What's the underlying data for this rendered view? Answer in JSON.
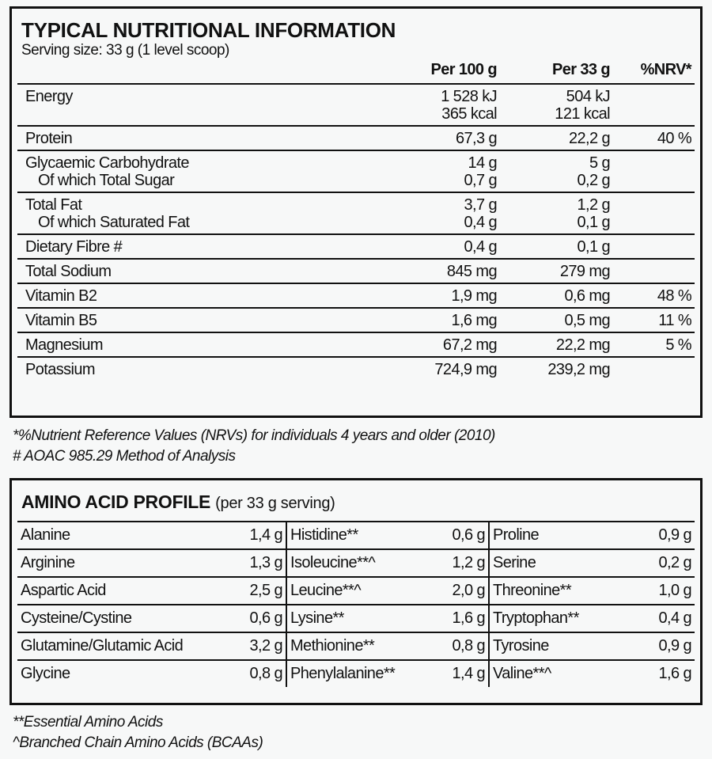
{
  "nutrition": {
    "title": "TYPICAL NUTRITIONAL INFORMATION",
    "serving": "Serving size: 33 g (1 level scoop)",
    "headers": [
      "Per 100 g",
      "Per 33 g",
      "%NRV*"
    ],
    "rows": [
      {
        "label": [
          "Energy"
        ],
        "per100": [
          "1 528 kJ",
          "365 kcal"
        ],
        "per33": [
          "504 kJ",
          "121 kcal"
        ],
        "nrv": ""
      },
      {
        "label": [
          "Protein"
        ],
        "per100": [
          "67,3 g"
        ],
        "per33": [
          "22,2 g"
        ],
        "nrv": "40 %"
      },
      {
        "label": [
          "Glycaemic Carbohydrate",
          "Of which Total Sugar"
        ],
        "per100": [
          "14 g",
          "0,7 g"
        ],
        "per33": [
          "5 g",
          "0,2 g"
        ],
        "nrv": ""
      },
      {
        "label": [
          "Total Fat",
          "Of which Saturated Fat"
        ],
        "per100": [
          "3,7 g",
          "0,4 g"
        ],
        "per33": [
          "1,2 g",
          "0,1 g"
        ],
        "nrv": ""
      },
      {
        "label": [
          "Dietary Fibre #"
        ],
        "per100": [
          "0,4 g"
        ],
        "per33": [
          "0,1 g"
        ],
        "nrv": ""
      },
      {
        "label": [
          "Total Sodium"
        ],
        "per100": [
          "845 mg"
        ],
        "per33": [
          "279 mg"
        ],
        "nrv": ""
      },
      {
        "label": [
          "Vitamin B2"
        ],
        "per100": [
          "1,9 mg"
        ],
        "per33": [
          "0,6 mg"
        ],
        "nrv": "48 %"
      },
      {
        "label": [
          "Vitamin B5"
        ],
        "per100": [
          "1,6 mg"
        ],
        "per33": [
          "0,5 mg"
        ],
        "nrv": "11 %"
      },
      {
        "label": [
          "Magnesium"
        ],
        "per100": [
          "67,2 mg"
        ],
        "per33": [
          "22,2 mg"
        ],
        "nrv": "5 %"
      },
      {
        "label": [
          "Potassium"
        ],
        "per100": [
          "724,9 mg"
        ],
        "per33": [
          "239,2 mg"
        ],
        "nrv": ""
      }
    ],
    "footnotes": [
      "*%Nutrient Reference Values (NRVs) for individuals 4 years and older (2010)",
      "# AOAC 985.29 Method of Analysis"
    ]
  },
  "amino": {
    "title": "AMINO ACID PROFILE",
    "per": "(per 33 g serving)",
    "rows": [
      [
        [
          "Alanine",
          "1,4 g"
        ],
        [
          "Histidine**",
          "0,6 g"
        ],
        [
          "Proline",
          "0,9 g"
        ]
      ],
      [
        [
          "Arginine",
          "1,3 g"
        ],
        [
          "Isoleucine**^",
          "1,2 g"
        ],
        [
          "Serine",
          "0,2 g"
        ]
      ],
      [
        [
          "Aspartic Acid",
          "2,5 g"
        ],
        [
          "Leucine**^",
          "2,0 g"
        ],
        [
          "Threonine**",
          "1,0 g"
        ]
      ],
      [
        [
          "Cysteine/Cystine",
          "0,6 g"
        ],
        [
          "Lysine**",
          "1,6 g"
        ],
        [
          "Tryptophan**",
          "0,4 g"
        ]
      ],
      [
        [
          "Glutamine/Glutamic Acid",
          "3,2 g"
        ],
        [
          "Methionine**",
          "0,8 g"
        ],
        [
          "Tyrosine",
          "0,9 g"
        ]
      ],
      [
        [
          "Glycine",
          "0,8 g"
        ],
        [
          "Phenylalanine**",
          "1,4 g"
        ],
        [
          "Valine**^",
          "1,6 g"
        ]
      ]
    ],
    "footnotes": [
      "**Essential Amino Acids",
      "^Branched Chain Amino Acids (BCAAs)"
    ]
  }
}
